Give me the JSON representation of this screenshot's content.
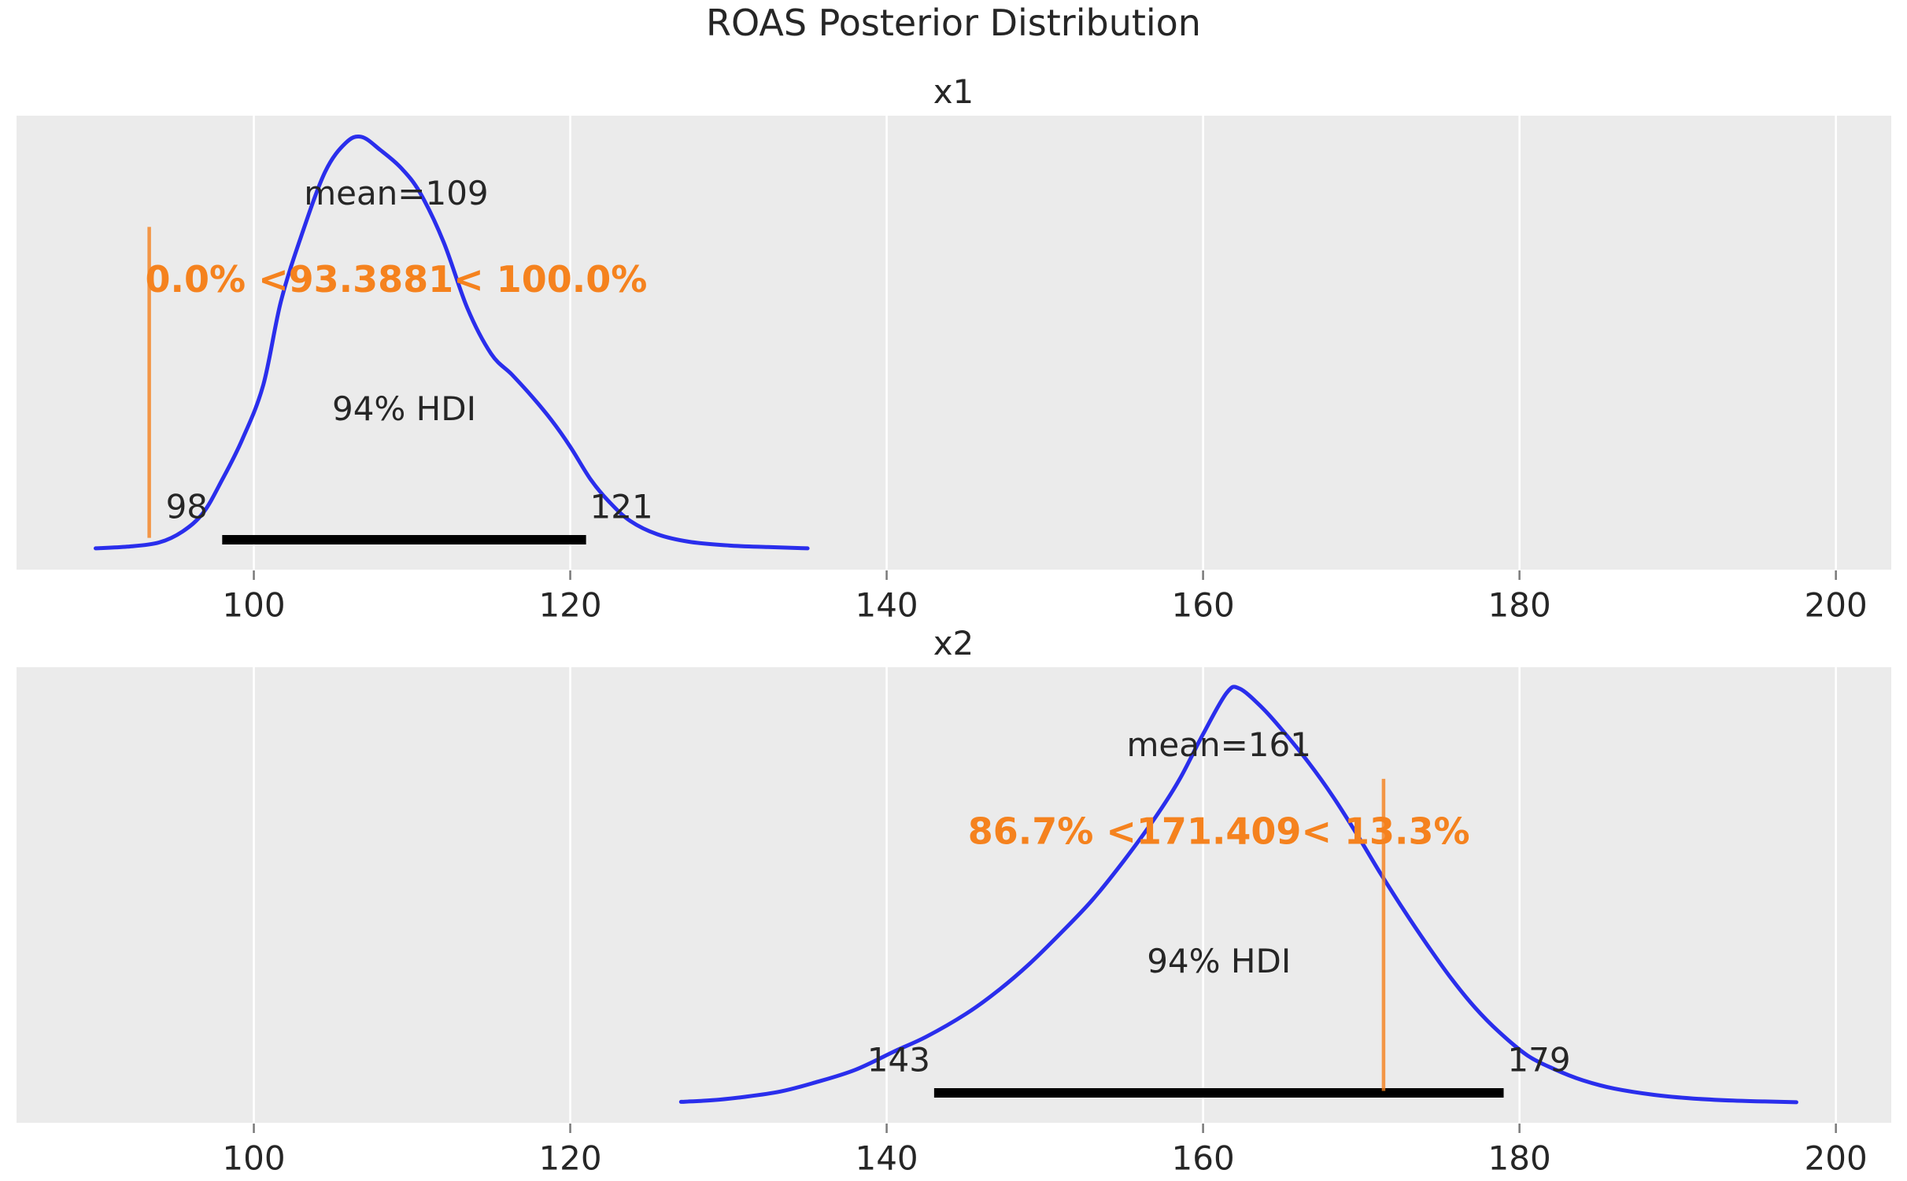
{
  "figure": {
    "title": "ROAS Posterior Distribution"
  },
  "colors": {
    "plot_bg": "#ebebeb",
    "grid": "#ffffff",
    "curve": "#2a2eec",
    "ref_line": "#f5821e",
    "ref_text": "#f5821e",
    "hdi_bar": "#000000",
    "text": "#262626",
    "tick_mark": "#7a7a7a"
  },
  "x_axis": {
    "ticks": [
      100,
      120,
      140,
      160,
      180,
      200
    ],
    "range": [
      85.0,
      203.5
    ]
  },
  "chart_data": [
    {
      "type": "kde",
      "title": "x1",
      "mean": 109,
      "mean_label": "mean=109",
      "ref_val": 93.3881,
      "ref_label": "0.0% <93.3881< 100.0%",
      "hdi": [
        98,
        121
      ],
      "hdi_label": "94% HDI",
      "hdi_low_label": "98",
      "hdi_high_label": "121",
      "curve": [
        [
          90,
          0.004
        ],
        [
          92,
          0.008
        ],
        [
          94,
          0.018
        ],
        [
          95.5,
          0.045
        ],
        [
          96.8,
          0.09
        ],
        [
          98,
          0.17
        ],
        [
          99.3,
          0.27
        ],
        [
          100.6,
          0.4
        ],
        [
          101.7,
          0.6
        ],
        [
          103,
          0.76
        ],
        [
          104.5,
          0.915
        ],
        [
          105.8,
          0.985
        ],
        [
          106.8,
          1.0
        ],
        [
          108,
          0.968
        ],
        [
          109.3,
          0.925
        ],
        [
          110.5,
          0.865
        ],
        [
          112,
          0.745
        ],
        [
          113.5,
          0.585
        ],
        [
          115,
          0.475
        ],
        [
          116.3,
          0.425
        ],
        [
          117.5,
          0.375
        ],
        [
          118.8,
          0.315
        ],
        [
          120,
          0.25
        ],
        [
          121.3,
          0.17
        ],
        [
          122.5,
          0.115
        ],
        [
          123.8,
          0.07
        ],
        [
          125.5,
          0.038
        ],
        [
          127.5,
          0.02
        ],
        [
          130,
          0.011
        ],
        [
          132.5,
          0.007
        ],
        [
          135,
          0.004
        ]
      ]
    },
    {
      "type": "kde",
      "title": "x2",
      "mean": 161,
      "mean_label": "mean=161",
      "ref_val": 171.409,
      "ref_label": "86.7% <171.409< 13.3%",
      "hdi": [
        143,
        179
      ],
      "hdi_label": "94% HDI",
      "hdi_low_label": "143",
      "hdi_high_label": "179",
      "curve": [
        [
          127,
          0.003
        ],
        [
          129,
          0.007
        ],
        [
          131,
          0.015
        ],
        [
          133.3,
          0.028
        ],
        [
          135.5,
          0.05
        ],
        [
          138,
          0.08
        ],
        [
          140.5,
          0.125
        ],
        [
          142.5,
          0.16
        ],
        [
          145,
          0.215
        ],
        [
          147,
          0.27
        ],
        [
          149,
          0.335
        ],
        [
          151,
          0.41
        ],
        [
          153,
          0.49
        ],
        [
          155,
          0.585
        ],
        [
          157,
          0.69
        ],
        [
          158.5,
          0.78
        ],
        [
          160,
          0.89
        ],
        [
          161.5,
          0.99
        ],
        [
          162.3,
          1.0
        ],
        [
          163.7,
          0.955
        ],
        [
          165,
          0.9
        ],
        [
          166.7,
          0.82
        ],
        [
          168.2,
          0.74
        ],
        [
          169.7,
          0.65
        ],
        [
          171.2,
          0.555
        ],
        [
          172.7,
          0.465
        ],
        [
          174.2,
          0.38
        ],
        [
          175.7,
          0.3
        ],
        [
          177.2,
          0.23
        ],
        [
          178.7,
          0.172
        ],
        [
          180.5,
          0.115
        ],
        [
          182.2,
          0.082
        ],
        [
          184,
          0.055
        ],
        [
          186,
          0.035
        ],
        [
          188.5,
          0.02
        ],
        [
          191,
          0.011
        ],
        [
          193.5,
          0.006
        ],
        [
          195.5,
          0.004
        ],
        [
          197.5,
          0.002
        ]
      ]
    }
  ]
}
